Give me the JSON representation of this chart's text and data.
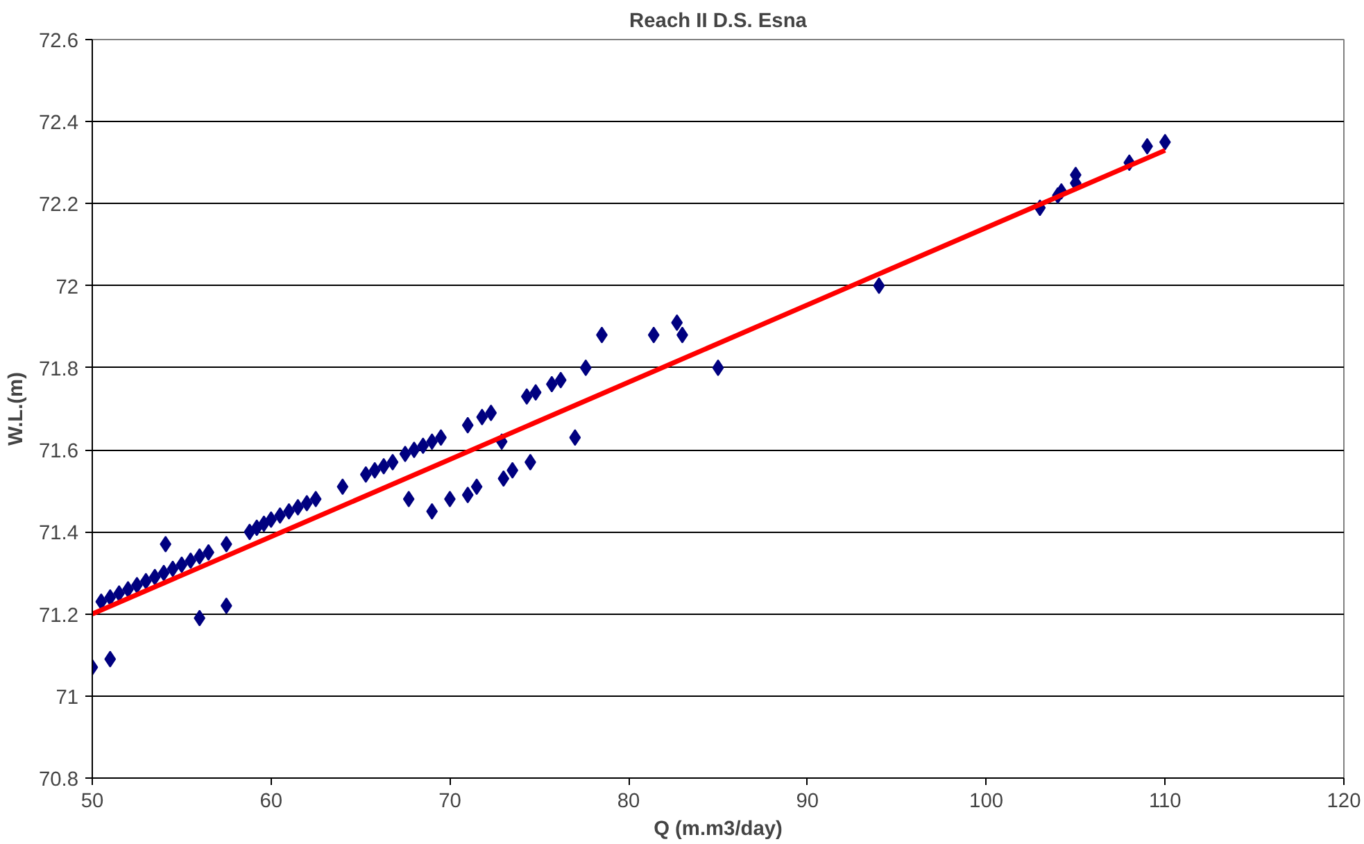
{
  "chart_data": {
    "type": "scatter",
    "title": "Reach II D.S. Esna",
    "xlabel": "Q (m.m3/day)",
    "ylabel": "W.L.(m)",
    "xlim": [
      50,
      120
    ],
    "xticks": [
      50,
      60,
      70,
      80,
      90,
      100,
      110,
      120
    ],
    "ylim": [
      70.8,
      72.6
    ],
    "yticks": [
      70.8,
      71,
      71.2,
      71.4,
      71.6,
      71.8,
      72,
      72.2,
      72.4,
      72.6
    ],
    "grid": "y",
    "series": [
      {
        "marker": "diamond",
        "color": "#000080",
        "x": [
          50,
          51,
          50.5,
          51,
          51.5,
          52,
          52.5,
          53,
          53.5,
          54,
          54.5,
          55,
          55.5,
          56,
          56.5,
          54.1,
          56,
          57.5,
          57.5,
          58.8,
          59.2,
          59.6,
          60,
          60.5,
          61,
          61.5,
          62,
          62.5,
          64,
          65.3,
          65.8,
          66.3,
          66.8,
          67.5,
          68,
          68.5,
          69,
          69.5,
          67.7,
          69,
          70,
          71,
          71.5,
          71,
          71.8,
          72.3,
          72.9,
          73,
          73.5,
          74.5,
          74.3,
          74.8,
          75.7,
          76.2,
          77,
          77.6,
          78.5,
          81.4,
          82.7,
          83,
          85,
          94,
          103,
          104,
          104.2,
          105,
          105,
          108,
          109,
          110
        ],
        "values": [
          71.07,
          71.09,
          71.23,
          71.24,
          71.25,
          71.26,
          71.27,
          71.28,
          71.29,
          71.3,
          71.31,
          71.32,
          71.33,
          71.34,
          71.35,
          71.37,
          71.19,
          71.22,
          71.37,
          71.4,
          71.41,
          71.42,
          71.43,
          71.44,
          71.45,
          71.46,
          71.47,
          71.48,
          71.51,
          71.54,
          71.55,
          71.56,
          71.57,
          71.59,
          71.6,
          71.61,
          71.62,
          71.63,
          71.48,
          71.45,
          71.48,
          71.49,
          71.51,
          71.66,
          71.68,
          71.69,
          71.62,
          71.53,
          71.55,
          71.57,
          71.73,
          71.74,
          71.76,
          71.77,
          71.63,
          71.8,
          71.88,
          71.88,
          71.91,
          71.88,
          71.8,
          72.0,
          72.19,
          72.22,
          72.23,
          72.25,
          72.27,
          72.3,
          72.34,
          72.35
        ]
      },
      {
        "type": "line",
        "color": "#ff0000",
        "line_style": "solid",
        "x": [
          50,
          110
        ],
        "values": [
          71.2,
          72.33
        ]
      }
    ]
  }
}
